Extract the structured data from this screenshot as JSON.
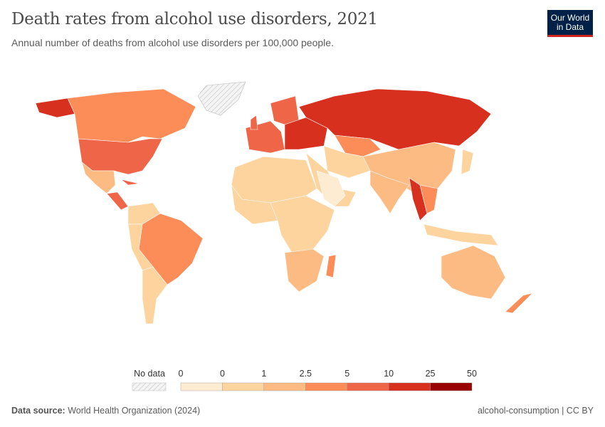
{
  "header": {
    "title": "Death rates from alcohol use disorders, 2021",
    "subtitle": "Annual number of deaths from alcohol use disorders per 100,000 people.",
    "logo": "Our World in Data"
  },
  "legend": {
    "no_data_label": "No data",
    "ticks": [
      "0",
      "0",
      "1",
      "2.5",
      "5",
      "10",
      "25",
      "50"
    ],
    "bins": [
      {
        "label": "0–0",
        "color": "#fdecd2"
      },
      {
        "label": "0–1",
        "color": "#fdd49e"
      },
      {
        "label": "1–2.5",
        "color": "#fdbb84"
      },
      {
        "label": "2.5–5",
        "color": "#fc8d59"
      },
      {
        "label": "5–10",
        "color": "#ef6548"
      },
      {
        "label": "10–25",
        "color": "#d7301f"
      },
      {
        "label": "25–50",
        "color": "#990000"
      }
    ]
  },
  "footer": {
    "source_label": "Data source:",
    "source": "World Health Organization (2024)",
    "slug": "alcohol-consumption | CC BY"
  }
}
